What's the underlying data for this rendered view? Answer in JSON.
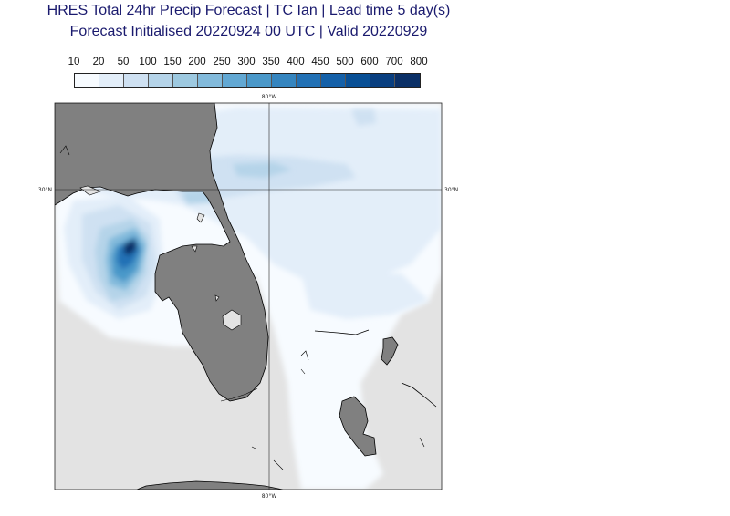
{
  "title_line1": "HRES Total 24hr Precip Forecast | TC Ian | Lead time 5 day(s)",
  "title_line2": "Forecast Initialised 20220924 00 UTC | Valid 20220929",
  "colorbar": {
    "levels": [
      "10",
      "20",
      "50",
      "100",
      "150",
      "200",
      "250",
      "300",
      "350",
      "400",
      "450",
      "500",
      "600",
      "700",
      "800"
    ],
    "colors": [
      "#f7fbff",
      "#e3eef9",
      "#cfe1f2",
      "#b5d4e9",
      "#9dc9e0",
      "#82badb",
      "#62a8d3",
      "#4a98c9",
      "#3585bf",
      "#2271b5",
      "#1460a8",
      "#084f95",
      "#083e7f",
      "#0a2f66"
    ]
  },
  "map": {
    "lon_label": "80°W",
    "lat_label": "30°N",
    "ocean_color": "#e3e3e3",
    "land_color": "#808080",
    "coast_color": "#000000"
  }
}
